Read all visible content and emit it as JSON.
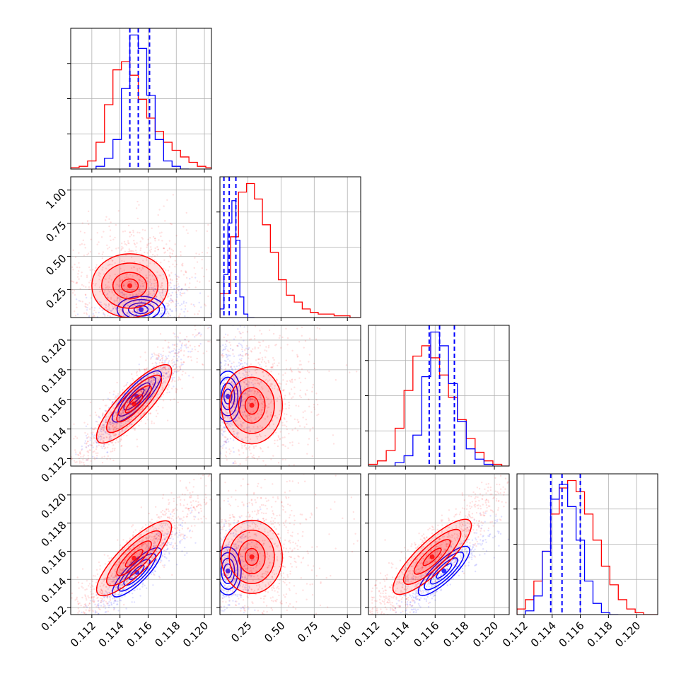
{
  "colors": {
    "red": "#ff0000",
    "blue": "#0000ff",
    "grid": "#b0b0b0",
    "frame": "#000000",
    "background": "#ffffff"
  },
  "chart_data": {
    "type": "corner-plot",
    "title": "",
    "grid": true,
    "legend": "none",
    "parameters": [
      {
        "axis_range": [
          0.1105,
          0.1205
        ],
        "tick_labels": [
          "0.112",
          "0.114",
          "0.116",
          "0.118",
          "0.120"
        ]
      },
      {
        "axis_range": [
          0.04,
          1.1
        ],
        "tick_labels": [
          "0.25",
          "0.50",
          "0.75",
          "1.00"
        ]
      },
      {
        "axis_range": [
          0.1115,
          0.121
        ],
        "tick_labels": [
          "0.112",
          "0.114",
          "0.116",
          "0.118",
          "0.120"
        ]
      },
      {
        "axis_range": [
          0.1115,
          0.1215
        ],
        "tick_labels": [
          "0.112",
          "0.114",
          "0.116",
          "0.118",
          "0.120"
        ]
      }
    ],
    "series": [
      {
        "color": "red",
        "quantiles_marked": false,
        "histograms": [
          {
            "bin_edges": [
              0.1105,
              0.1111,
              0.1117,
              0.1123,
              0.1129,
              0.1135,
              0.1141,
              0.1147,
              0.1153,
              0.1159,
              0.1165,
              0.1171,
              0.1177,
              0.1183,
              0.1189,
              0.1195,
              0.1201,
              0.1205
            ],
            "counts": [
              1,
              2,
              6,
              20,
              48,
              74,
              80,
              70,
              52,
              38,
              28,
              20,
              14,
              9,
              5,
              2,
              1
            ]
          },
          {
            "bin_edges": [
              0.04,
              0.12,
              0.18,
              0.24,
              0.3,
              0.36,
              0.42,
              0.48,
              0.54,
              0.6,
              0.66,
              0.72,
              0.78,
              0.84,
              0.9,
              0.96,
              1.02,
              1.1
            ],
            "counts": [
              14,
              47,
              73,
              78,
              69,
              54,
              38,
              22,
              13,
              9,
              5,
              3,
              2,
              2,
              1,
              1,
              0
            ]
          },
          {
            "bin_edges": [
              0.1115,
              0.1121,
              0.1127,
              0.1133,
              0.1139,
              0.1145,
              0.1151,
              0.1157,
              0.1163,
              0.1169,
              0.1175,
              0.1181,
              0.1187,
              0.1193,
              0.1199,
              0.1205,
              0.121
            ],
            "counts": [
              1,
              3,
              9,
              22,
              44,
              64,
              70,
              63,
              53,
              40,
              27,
              16,
              8,
              3,
              1,
              0
            ]
          },
          {
            "bin_edges": [
              0.1115,
              0.1121,
              0.1127,
              0.1133,
              0.1139,
              0.1145,
              0.1151,
              0.1157,
              0.1163,
              0.1169,
              0.1175,
              0.1181,
              0.1187,
              0.1193,
              0.1199,
              0.1205,
              0.1215
            ],
            "counts": [
              3,
              8,
              18,
              34,
              54,
              68,
              72,
              66,
              54,
              40,
              26,
              16,
              8,
              3,
              1,
              0
            ]
          }
        ],
        "scatter_2d": [
          {
            "params": [
              0,
              1
            ],
            "center": [
              0.1147,
              0.28
            ],
            "contour_levels": [
              [
                0.0006,
                0.05
              ],
              [
                0.0012,
                0.1
              ],
              [
                0.002,
                0.17
              ],
              [
                0.0027,
                0.24
              ]
            ]
          },
          {
            "params": [
              0,
              2
            ],
            "center": [
              0.115,
              0.1157
            ],
            "contour_levels": [
              [
                0.0006,
                0.0006
              ],
              [
                0.0012,
                0.0012
              ],
              [
                0.0019,
                0.0019
              ],
              [
                0.0026,
                0.0026
              ]
            ]
          },
          {
            "params": [
              1,
              2
            ],
            "center": [
              0.28,
              0.1156
            ],
            "contour_levels": [
              [
                0.05,
                0.0006
              ],
              [
                0.1,
                0.0012
              ],
              [
                0.17,
                0.0019
              ],
              [
                0.23,
                0.0026
              ]
            ]
          },
          {
            "params": [
              0,
              3
            ],
            "center": [
              0.115,
              0.1155
            ],
            "contour_levels": [
              [
                0.0006,
                0.0006
              ],
              [
                0.0012,
                0.0012
              ],
              [
                0.0019,
                0.0019
              ],
              [
                0.0026,
                0.0026
              ]
            ]
          },
          {
            "params": [
              1,
              3
            ],
            "center": [
              0.28,
              0.1156
            ],
            "contour_levels": [
              [
                0.05,
                0.0006
              ],
              [
                0.1,
                0.0012
              ],
              [
                0.17,
                0.0019
              ],
              [
                0.23,
                0.0026
              ]
            ]
          },
          {
            "params": [
              2,
              3
            ],
            "center": [
              0.1158,
              0.1156
            ],
            "contour_levels": [
              [
                0.0006,
                0.0006
              ],
              [
                0.0012,
                0.0012
              ],
              [
                0.0019,
                0.0019
              ],
              [
                0.0026,
                0.0026
              ]
            ]
          }
        ]
      },
      {
        "color": "blue",
        "quantiles_marked": true,
        "quantile_lines": [
          [
            0.1147,
            0.1153,
            0.1161
          ],
          [
            0.07,
            0.11,
            0.16
          ],
          [
            0.1156,
            0.1163,
            0.1173
          ],
          [
            0.1139,
            0.1147,
            0.116
          ]
        ],
        "histograms": [
          {
            "bin_edges": [
              0.1123,
              0.1129,
              0.1135,
              0.1141,
              0.1147,
              0.1153,
              0.1159,
              0.1165,
              0.1171,
              0.1177,
              0.1183,
              0.1189
            ],
            "counts": [
              2,
              8,
              22,
              60,
              100,
              90,
              55,
              22,
              6,
              2,
              0
            ]
          },
          {
            "bin_edges": [
              0.04,
              0.07,
              0.1,
              0.13,
              0.16,
              0.19,
              0.22,
              0.25,
              0.3
            ],
            "counts": [
              5,
              25,
              55,
              68,
              45,
              12,
              2,
              0
            ]
          },
          {
            "bin_edges": [
              0.1133,
              0.1139,
              0.1145,
              0.1151,
              0.1157,
              0.1163,
              0.1169,
              0.1175,
              0.1181,
              0.1187,
              0.1193,
              0.1199
            ],
            "counts": [
              2,
              6,
              18,
              52,
              78,
              70,
              48,
              26,
              10,
              4,
              1
            ]
          },
          {
            "bin_edges": [
              0.1121,
              0.1127,
              0.1133,
              0.1139,
              0.1145,
              0.1151,
              0.1157,
              0.1163,
              0.1169,
              0.1175,
              0.1181,
              0.1187
            ],
            "counts": [
              2,
              10,
              34,
              62,
              70,
              58,
              40,
              18,
              6,
              1,
              0
            ]
          }
        ],
        "scatter_2d": [
          {
            "params": [
              0,
              1
            ],
            "center": [
              0.1155,
              0.1
            ],
            "contour_levels": [
              [
                0.0005,
                0.03
              ],
              [
                0.0009,
                0.05
              ],
              [
                0.0013,
                0.075
              ],
              [
                0.0017,
                0.1
              ]
            ]
          },
          {
            "params": [
              0,
              2
            ],
            "center": [
              0.1152,
              0.1162
            ],
            "contour_levels": [
              [
                0.0005,
                0.0005
              ],
              [
                0.0009,
                0.0009
              ],
              [
                0.0013,
                0.0013
              ],
              [
                0.0017,
                0.0017
              ]
            ]
          },
          {
            "params": [
              1,
              2
            ],
            "center": [
              0.1,
              0.1162
            ],
            "contour_levels": [
              [
                0.03,
                0.0005
              ],
              [
                0.05,
                0.0009
              ],
              [
                0.075,
                0.0013
              ],
              [
                0.1,
                0.0017
              ]
            ]
          },
          {
            "params": [
              0,
              3
            ],
            "center": [
              0.1152,
              0.1145
            ],
            "contour_levels": [
              [
                0.0005,
                0.0005
              ],
              [
                0.0009,
                0.0009
              ],
              [
                0.0013,
                0.0013
              ],
              [
                0.0017,
                0.0017
              ]
            ]
          },
          {
            "params": [
              1,
              3
            ],
            "center": [
              0.1,
              0.1146
            ],
            "contour_levels": [
              [
                0.03,
                0.0005
              ],
              [
                0.05,
                0.0009
              ],
              [
                0.075,
                0.0013
              ],
              [
                0.1,
                0.0017
              ]
            ]
          },
          {
            "params": [
              2,
              3
            ],
            "center": [
              0.1166,
              0.1146
            ],
            "contour_levels": [
              [
                0.0005,
                0.0005
              ],
              [
                0.0009,
                0.0009
              ],
              [
                0.0013,
                0.0013
              ],
              [
                0.0017,
                0.0017
              ]
            ]
          }
        ]
      }
    ]
  }
}
